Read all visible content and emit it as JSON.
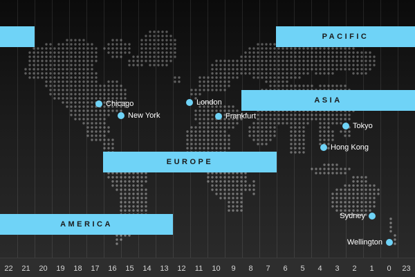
{
  "regions": {
    "pacific": "PACIFIC",
    "asia": "ASIA",
    "europe": "EUROPE",
    "america": "AMERICA"
  },
  "cities": {
    "chicago": "Chicago",
    "new_york": "New York",
    "london": "London",
    "frankfurt": "Frankfurt",
    "tokyo": "Tokyo",
    "hong_kong": "Hong Kong",
    "sydney": "Sydney",
    "wellington": "Wellington"
  },
  "hour_axis": [
    "22",
    "21",
    "20",
    "19",
    "18",
    "17",
    "16",
    "15",
    "14",
    "13",
    "12",
    "11",
    "10",
    "9",
    "8",
    "7",
    "6",
    "5",
    "4",
    "3",
    "2",
    "1",
    "0",
    "23"
  ],
  "colors": {
    "accent": "#6fd3f7",
    "land_dots": "#8a8a8a",
    "background_top": "#0b0b0b",
    "background_bottom": "#2c2c2c",
    "city_text": "#ffffff"
  }
}
